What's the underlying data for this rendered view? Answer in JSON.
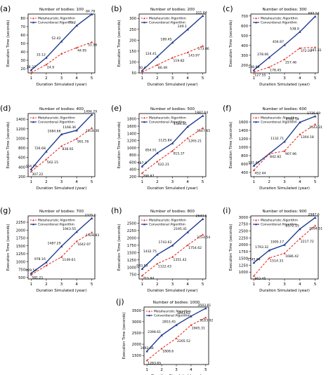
{
  "figure": {
    "xlabel": "Duration Simulated (year)",
    "ylabel": "Execution Time (seconds)",
    "legend": [
      "Metaheuristic Algorithm",
      "Conventional Algorithm"
    ],
    "colors": {
      "metaheuristic": "#e8302a",
      "conventional": "#1f3a93"
    }
  },
  "chart_data": [
    {
      "label": "(a)",
      "type": "line",
      "title": "Number of bodies: 100",
      "x": [
        1,
        2,
        3,
        4,
        5
      ],
      "ylim": [
        15,
        85
      ],
      "yticks": [
        20,
        30,
        40,
        50,
        60,
        70,
        80
      ],
      "series": [
        {
          "name": "Metaheuristic Algorithm",
          "values": [
            15.22,
            24.9,
            37.82,
            44.95,
            51.56
          ]
        },
        {
          "name": "Conventional Algorithm",
          "values": [
            18.37,
            33.12,
            52.42,
            71.2,
            84.78
          ]
        }
      ],
      "meta_labels": [
        "",
        "24.9",
        "",
        "44.95",
        "51.56"
      ],
      "conv_labels": [
        "18.37",
        "33.12",
        "52.42",
        "71.2",
        "84.78"
      ]
    },
    {
      "label": "(b)",
      "type": "line",
      "title": "Number of bodies: 200",
      "x": [
        1,
        2,
        3,
        4,
        5
      ],
      "ylim": [
        50,
        320
      ],
      "yticks": [
        50,
        100,
        150,
        200,
        250,
        300
      ],
      "series": [
        {
          "name": "Metaheuristic Algorithm",
          "values": [
            54.2,
            86.49,
            119.82,
            143.97,
            173.86
          ]
        },
        {
          "name": "Conventional Algorithm",
          "values": [
            60.4,
            124.41,
            189.45,
            249.1,
            311.64
          ]
        }
      ],
      "meta_labels": [
        "",
        "86.49",
        "119.82",
        "143.97",
        "173.86"
      ],
      "conv_labels": [
        "60.4",
        "124.41",
        "189.45",
        "249.1",
        "311.64"
      ]
    },
    {
      "label": "(c)",
      "type": "line",
      "title": "Number of bodies: 300",
      "x": [
        1,
        2,
        3,
        4,
        5
      ],
      "ylim": [
        120,
        720
      ],
      "yticks": [
        200,
        300,
        400,
        500,
        600,
        700
      ],
      "series": [
        {
          "name": "Metaheuristic Algorithm",
          "values": [
            127.55,
            178.45,
            257.46,
            372.01,
            381.31
          ]
        },
        {
          "name": "Conventional Algorithm",
          "values": [
            148.89,
            278.06,
            404.87,
            538.9,
            695.54
          ]
        }
      ],
      "meta_labels": [
        "127.55",
        "178.45",
        "257.46",
        "372.01",
        "381.31"
      ],
      "conv_labels": [
        "148.89",
        "278.06",
        "404.87",
        "538.9",
        "695.54"
      ]
    },
    {
      "label": "(d)",
      "type": "line",
      "title": "Number of bodies: 400",
      "x": [
        1,
        2,
        3,
        4,
        5
      ],
      "ylim": [
        200,
        1520
      ],
      "yticks": [
        200,
        400,
        600,
        800,
        1000,
        1200,
        1400
      ],
      "series": [
        {
          "name": "Metaheuristic Algorithm",
          "values": [
            307.22,
            562.15,
            838.92,
            991.78,
            1218.36
          ]
        },
        {
          "name": "Conventional Algorithm",
          "values": [
            354.29,
            726.68,
            1084.66,
            1168.36,
            1496.29
          ]
        }
      ],
      "meta_labels": [
        "307.22",
        "562.15",
        "838.92",
        "991.78",
        "1218.36"
      ],
      "conv_labels": [
        "354.29",
        "726.68",
        "1084.66",
        "1168.36",
        "1496.29"
      ]
    },
    {
      "label": "(e)",
      "type": "line",
      "title": "Number of bodies: 500",
      "x": [
        1,
        2,
        3,
        4,
        5
      ],
      "ylim": [
        200,
        1950
      ],
      "yticks": [
        200,
        400,
        600,
        800,
        1000,
        1200,
        1400,
        1600,
        1800
      ],
      "series": [
        {
          "name": "Metaheuristic Algorithm",
          "values": [
            298.87,
            622.21,
            915.37,
            1265.21,
            1547.65
          ]
        },
        {
          "name": "Conventional Algorithm",
          "values": [
            487.4,
            854.91,
            1125.84,
            1584.81,
            1887.64
          ]
        }
      ],
      "meta_labels": [
        "298.87",
        "622.21",
        "915.37",
        "1265.21",
        "1547.65"
      ],
      "conv_labels": [
        "487.4",
        "854.91",
        "1125.84",
        "1584.81",
        "1887.64"
      ]
    },
    {
      "label": "(f)",
      "type": "line",
      "title": "Number of bodies: 600",
      "x": [
        1,
        2,
        3,
        4,
        5
      ],
      "ylim": [
        300,
        1800
      ],
      "yticks": [
        400,
        600,
        800,
        1000,
        1200,
        1400,
        1600
      ],
      "series": [
        {
          "name": "Metaheuristic Algorithm",
          "values": [
            452.44,
            842.82,
            907.96,
            1304.18,
            1543.31
          ]
        },
        {
          "name": "Conventional Algorithm",
          "values": [
            561.47,
            842.82,
            1132.71,
            1592.14,
            1735.69
          ]
        }
      ],
      "meta_labels": [
        "452.44",
        "842.82",
        "907.96",
        "1304.18",
        "1543.31"
      ],
      "conv_labels": [
        "561.47",
        "",
        "1132.71",
        "1592.14",
        "1735.69"
      ]
    },
    {
      "label": "(g)",
      "type": "line",
      "title": "Number of bodies: 700",
      "x": [
        1,
        2,
        3,
        4,
        5
      ],
      "ylim": [
        450,
        2450
      ],
      "yticks": [
        500,
        750,
        1000,
        1250,
        1500,
        1750,
        2000,
        2250
      ],
      "series": [
        {
          "name": "Metaheuristic Algorithm",
          "values": [
            581.21,
            876.9,
            1149.61,
            1642.97,
            1928.83
          ]
        },
        {
          "name": "Conventional Algorithm",
          "values": [
            629.54,
            978.16,
            1487.29,
            1943.55,
            2375.6
          ]
        }
      ],
      "meta_labels": [
        "581.21",
        "",
        "1149.61",
        "1642.97",
        "1928.83"
      ],
      "conv_labels": [
        "629.54",
        "978.16",
        "1487.29",
        "1943.55",
        "2375.6"
      ]
    },
    {
      "label": "(h)",
      "type": "line",
      "title": "Number of bodies: 800",
      "x": [
        1,
        2,
        3,
        4,
        5
      ],
      "ylim": [
        600,
        2750
      ],
      "yticks": [
        750,
        1000,
        1250,
        1500,
        1750,
        2000,
        2250,
        2500
      ],
      "series": [
        {
          "name": "Metaheuristic Algorithm",
          "values": [
            715.84,
            1122.43,
            1351.42,
            1754.62,
            2114.54
          ]
        },
        {
          "name": "Conventional Algorithm",
          "values": [
            943.53,
            1432.75,
            1743.62,
            2195.41,
            2643.5
          ]
        }
      ],
      "meta_labels": [
        "715.84",
        "1122.43",
        "1351.42",
        "1754.62",
        "2114.54"
      ],
      "conv_labels": [
        "943.53",
        "1432.75",
        "1743.62",
        "2195.41",
        "2643.5"
      ]
    },
    {
      "label": "(i)",
      "type": "line",
      "title": "Number of bodies: 900",
      "x": [
        1,
        2,
        3,
        4,
        5
      ],
      "ylim": [
        750,
        3050
      ],
      "yticks": [
        1000,
        1250,
        1500,
        1750,
        2000,
        2250,
        2500,
        2750,
        3000
      ],
      "series": [
        {
          "name": "Metaheuristic Algorithm",
          "values": [
            862.45,
            1514.33,
            1686.42,
            2217.72,
            2694.51
          ]
        },
        {
          "name": "Conventional Algorithm",
          "values": [
            1345.64,
            1793.32,
            1995.17,
            2572.15,
            2987.6
          ]
        }
      ],
      "meta_labels": [
        "862.45",
        "1514.33",
        "1686.42",
        "2217.72",
        "2694.51"
      ],
      "conv_labels": [
        "1345.64",
        "1793.32",
        "1995.17",
        "2572.15",
        "2987.6"
      ]
    },
    {
      "label": "(j)",
      "type": "line",
      "title": "Number of bodies: 1000",
      "x": [
        1,
        2,
        3,
        4,
        5
      ],
      "ylim": [
        1100,
        3650
      ],
      "yticks": [
        1500,
        2000,
        2500,
        3000,
        3500
      ],
      "series": [
        {
          "name": "Metaheuristic Algorithm",
          "values": [
            1283.65,
            1808.6,
            2265.52,
            2845.31,
            3183.92
          ]
        },
        {
          "name": "Conventional Algorithm",
          "values": [
            1692.66,
            2398.61,
            2853.45,
            3243.62,
            3593.81
          ]
        }
      ],
      "meta_labels": [
        "1283.65",
        "1808.6",
        "2265.52",
        "2845.31",
        "3183.92"
      ],
      "conv_labels": [
        "1692.66",
        "2398.61",
        "2853.45",
        "3243.62",
        "3593.81"
      ]
    }
  ]
}
